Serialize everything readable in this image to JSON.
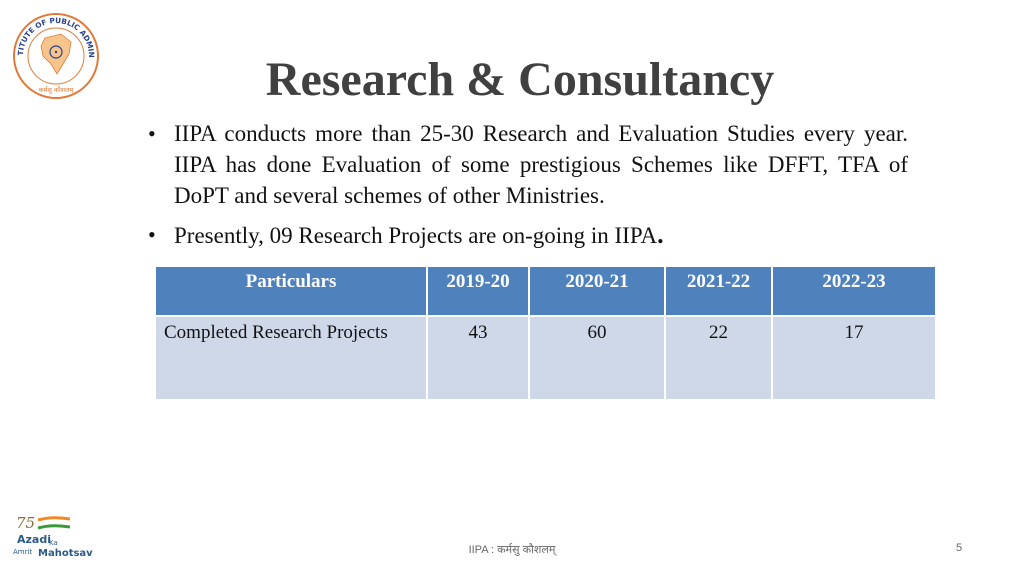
{
  "logo": {
    "text_top": "INDIAN INSTITUTE OF PUBLIC ADMINISTRATION",
    "text_bottom": "कर्मसु कौशलम्",
    "colors": {
      "ring": "#e07a3a",
      "text": "#2a3f8f",
      "fill": "#f7c58b"
    }
  },
  "title": "Research & Consultancy",
  "bullets": [
    {
      "text": "IIPA conducts more than 25-30 Research and Evaluation Studies every year. IIPA has done Evaluation of some prestigious Schemes like DFFT, TFA of DoPT and several schemes of other Ministries.",
      "suffix": ""
    },
    {
      "text": "Presently, 09 Research Projects are on-going in IIPA",
      "suffix": "."
    }
  ],
  "table": {
    "headers": [
      "Particulars",
      "2019-20",
      "2020-21",
      "2021-22",
      "2022-23"
    ],
    "rows": [
      [
        "Completed Research Projects",
        "43",
        "60",
        "22",
        "17"
      ]
    ],
    "colors": {
      "header_bg": "#4f81bd",
      "row_bg": "#cfd8e8"
    }
  },
  "bottom_logo": {
    "line1": "Azadi",
    "line2": "Ka",
    "line3": "Amrit",
    "line4": "Mahotsav",
    "number": "75"
  },
  "footer": {
    "text": "IIPA : कर्मसु कौशलम्",
    "page": "5"
  }
}
